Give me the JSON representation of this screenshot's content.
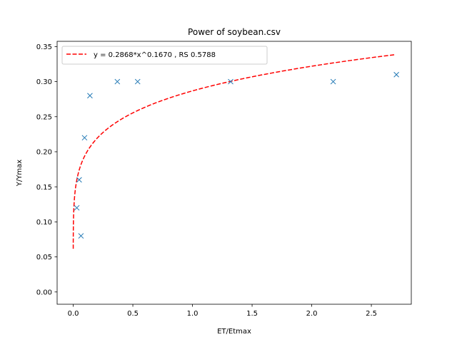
{
  "chart_data": {
    "type": "scatter",
    "title": "Power of soybean.csv",
    "xlabel": "ET/Etmax",
    "ylabel": "Y/Ymax",
    "xlim": [
      -0.135,
      2.835
    ],
    "ylim": [
      -0.0175,
      0.3575
    ],
    "x_ticks": [
      "0.0",
      "0.5",
      "1.0",
      "1.5",
      "2.0",
      "2.5"
    ],
    "y_ticks": [
      "0.00",
      "0.05",
      "0.10",
      "0.15",
      "0.20",
      "0.25",
      "0.30",
      "0.35"
    ],
    "grid": false,
    "legend_position": "top-left",
    "series": [
      {
        "kind": "points",
        "marker": "x",
        "color": "#1f77b4",
        "points": [
          {
            "x": 0.03,
            "y": 0.12
          },
          {
            "x": 0.05,
            "y": 0.16
          },
          {
            "x": 0.065,
            "y": 0.08
          },
          {
            "x": 0.095,
            "y": 0.22
          },
          {
            "x": 0.14,
            "y": 0.28
          },
          {
            "x": 0.37,
            "y": 0.3
          },
          {
            "x": 0.54,
            "y": 0.3
          },
          {
            "x": 1.32,
            "y": 0.3
          },
          {
            "x": 2.18,
            "y": 0.3
          },
          {
            "x": 2.71,
            "y": 0.31
          }
        ]
      },
      {
        "kind": "fit-line",
        "name": "y = 0.2868*x^0.1670 , RS 0.5788",
        "line_style": "dashed",
        "color": "#ff0000",
        "coefficient": 0.2868,
        "exponent": 0.167,
        "x_range": [
          0.0001,
          2.7
        ]
      }
    ]
  }
}
